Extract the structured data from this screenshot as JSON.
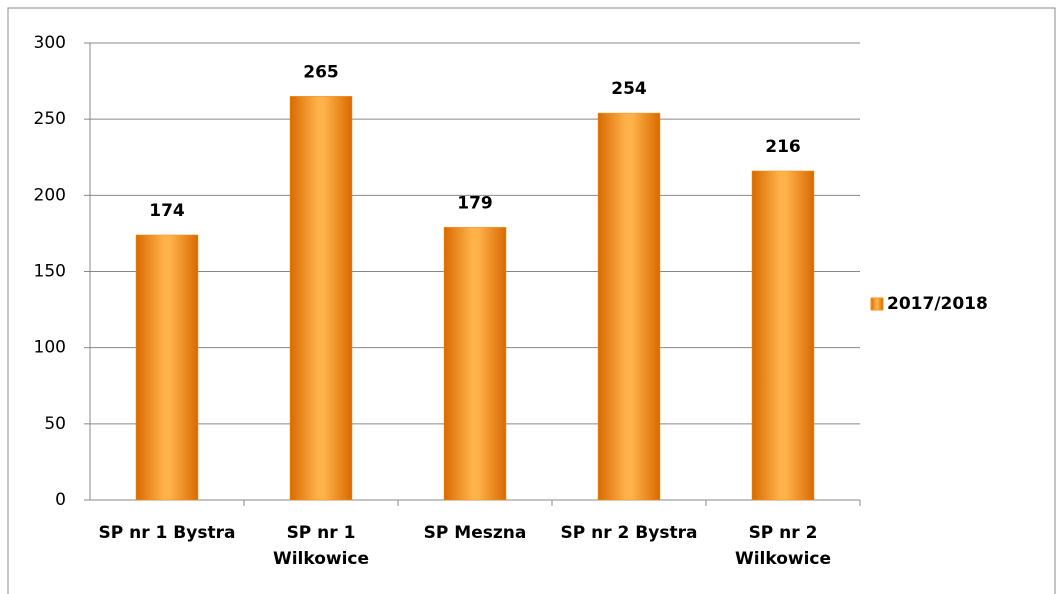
{
  "chart_data": {
    "type": "bar",
    "categories": [
      "SP nr 1 Bystra",
      "SP nr 1 Wilkowice",
      "SP Meszna",
      "SP nr 2 Bystra",
      "SP nr 2 Wilkowice"
    ],
    "series": [
      {
        "name": "2017/2018",
        "color": "#f7941d",
        "values": [
          174,
          265,
          179,
          254,
          216
        ]
      }
    ],
    "ylim": [
      0,
      300
    ],
    "yticks": [
      0,
      50,
      100,
      150,
      200,
      250,
      300
    ],
    "grid": true,
    "legend": "right"
  }
}
